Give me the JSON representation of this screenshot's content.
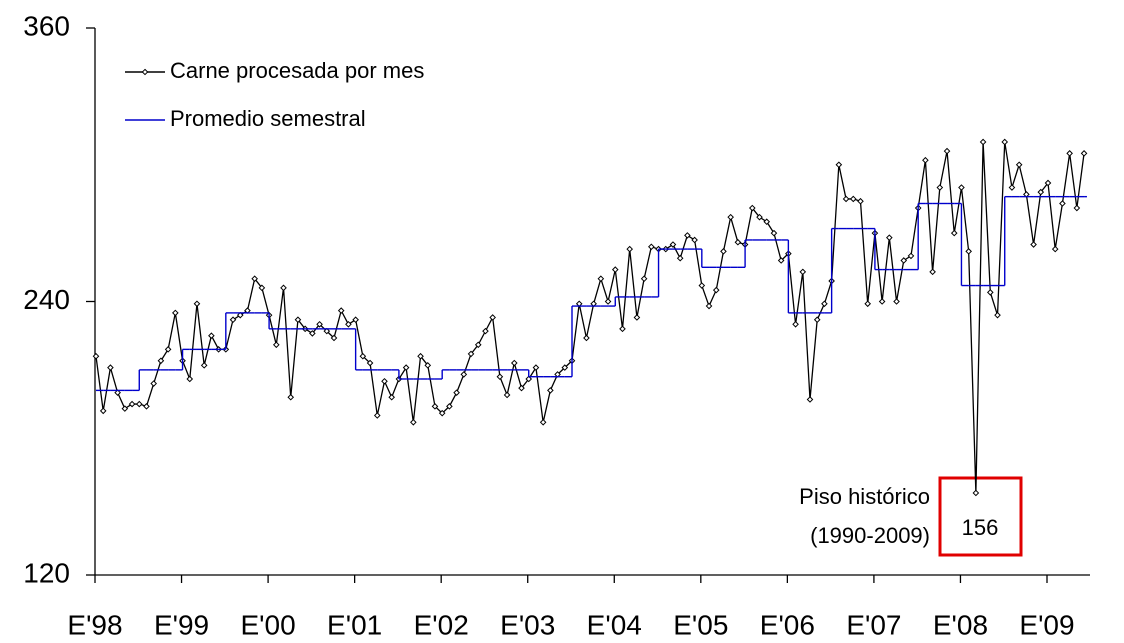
{
  "chart_data": {
    "type": "line",
    "categories": [
      "E'98",
      null,
      null,
      null,
      null,
      null,
      null,
      null,
      null,
      null,
      null,
      null,
      "E'99",
      null,
      null,
      null,
      null,
      null,
      null,
      null,
      null,
      null,
      null,
      null,
      "E'00",
      null,
      null,
      null,
      null,
      null,
      null,
      null,
      null,
      null,
      null,
      null,
      "E'01",
      null,
      null,
      null,
      null,
      null,
      null,
      null,
      null,
      null,
      null,
      null,
      "E'02",
      null,
      null,
      null,
      null,
      null,
      null,
      null,
      null,
      null,
      null,
      null,
      "E'03",
      null,
      null,
      null,
      null,
      null,
      null,
      null,
      null,
      null,
      null,
      null,
      "E'04",
      null,
      null,
      null,
      null,
      null,
      null,
      null,
      null,
      null,
      null,
      null,
      "E'05",
      null,
      null,
      null,
      null,
      null,
      null,
      null,
      null,
      null,
      null,
      null,
      "E'06",
      null,
      null,
      null,
      null,
      null,
      null,
      null,
      null,
      null,
      null,
      null,
      "E'07",
      null,
      null,
      null,
      null,
      null,
      null,
      null,
      null,
      null,
      null,
      null,
      "E'08",
      null,
      null,
      null,
      null,
      null,
      null,
      null,
      null,
      null,
      null,
      null,
      "E'09",
      null,
      null,
      null,
      null,
      null
    ],
    "series": [
      {
        "name": "Carne procesada por mes",
        "color": "#000000",
        "values": [
          216,
          192,
          211,
          200,
          193,
          195,
          195,
          194,
          204,
          214,
          219,
          235,
          214,
          206,
          239,
          212,
          225,
          219,
          219,
          232,
          234,
          236,
          250,
          246,
          234,
          221,
          246,
          198,
          232,
          228,
          226,
          230,
          227,
          224,
          236,
          230,
          232,
          216,
          213,
          190,
          205,
          198,
          206,
          211,
          187,
          216,
          212,
          194,
          191,
          194,
          200,
          208,
          217,
          221,
          227,
          233,
          207,
          199,
          213,
          202,
          206,
          211,
          187,
          201,
          208,
          211,
          214,
          239,
          224,
          239,
          250,
          240,
          254,
          228,
          263,
          233,
          250,
          264,
          263,
          263,
          265,
          259,
          269,
          267,
          247,
          238,
          245,
          262,
          277,
          266,
          265,
          281,
          277,
          275,
          270,
          258,
          261,
          230,
          253,
          197,
          232,
          239,
          249,
          300,
          285,
          285,
          284,
          239,
          270,
          240,
          268,
          240,
          258,
          260,
          281,
          302,
          253,
          290,
          306,
          270,
          290,
          262,
          156,
          310,
          244,
          234,
          310,
          290,
          300,
          287,
          265,
          288,
          292,
          263,
          283,
          305,
          281,
          305
        ]
      },
      {
        "name": "Promedio semestral",
        "color": "#0000cc",
        "step": true,
        "values": [
          201,
          201,
          201,
          201,
          201,
          201,
          210,
          210,
          210,
          210,
          210,
          210,
          219,
          219,
          219,
          219,
          219,
          219,
          235,
          235,
          235,
          235,
          235,
          235,
          228,
          228,
          228,
          228,
          228,
          228,
          228,
          228,
          228,
          228,
          228,
          228,
          210,
          210,
          210,
          210,
          210,
          210,
          206,
          206,
          206,
          206,
          206,
          206,
          210,
          210,
          210,
          210,
          210,
          210,
          210,
          210,
          210,
          210,
          210,
          210,
          207,
          207,
          207,
          207,
          207,
          207,
          238,
          238,
          238,
          238,
          238,
          238,
          242,
          242,
          242,
          242,
          242,
          242,
          263,
          263,
          263,
          263,
          263,
          263,
          255,
          255,
          255,
          255,
          255,
          255,
          267,
          267,
          267,
          267,
          267,
          267,
          235,
          235,
          235,
          235,
          235,
          235,
          272,
          272,
          272,
          272,
          272,
          272,
          254,
          254,
          254,
          254,
          254,
          254,
          283,
          283,
          283,
          283,
          283,
          283,
          247,
          247,
          247,
          247,
          247,
          247,
          286,
          286,
          286,
          286,
          286,
          286,
          286,
          286,
          286,
          286,
          286,
          286
        ]
      }
    ],
    "ylim": [
      120,
      360
    ],
    "yticks": [
      120,
      240,
      360
    ],
    "annotations": [
      "Piso histórico",
      "(1990-2009)"
    ],
    "highlight_index": 122
  }
}
